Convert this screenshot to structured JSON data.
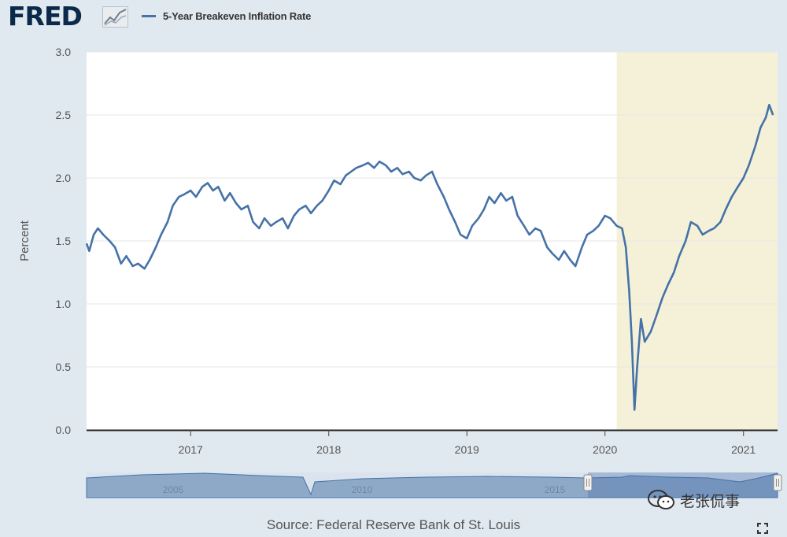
{
  "header": {
    "logo": "FRED",
    "legend_label": "5-Year Breakeven Inflation Rate",
    "legend_color": "#4572a7"
  },
  "footer": {
    "source": "Source: Federal Reserve Bank of St. Louis",
    "watermark": "老张侃事"
  },
  "chart_data": {
    "type": "line",
    "title": "",
    "ylabel": "Percent",
    "xlabel": "",
    "xlim": [
      "2016-04-01",
      "2021-04-01"
    ],
    "ylim": [
      0,
      3.0
    ],
    "yticks": [
      0.0,
      0.5,
      1.0,
      1.5,
      2.0,
      2.5,
      3.0
    ],
    "xticks": [
      "2017",
      "2018",
      "2019",
      "2020",
      "2021"
    ],
    "grid": true,
    "legend": "top-left",
    "recession_shading": {
      "start": "2020-02-01",
      "end": "2021-04-01",
      "color": "#f5f1d8"
    },
    "series": [
      {
        "name": "5-Year Breakeven Inflation Rate",
        "color": "#4572a7",
        "points": [
          [
            "2016-04-01",
            1.48
          ],
          [
            "2016-04-08",
            1.42
          ],
          [
            "2016-04-20",
            1.55
          ],
          [
            "2016-05-01",
            1.6
          ],
          [
            "2016-05-15",
            1.55
          ],
          [
            "2016-06-01",
            1.5
          ],
          [
            "2016-06-15",
            1.45
          ],
          [
            "2016-07-01",
            1.32
          ],
          [
            "2016-07-15",
            1.38
          ],
          [
            "2016-08-01",
            1.3
          ],
          [
            "2016-08-15",
            1.32
          ],
          [
            "2016-09-01",
            1.28
          ],
          [
            "2016-09-15",
            1.35
          ],
          [
            "2016-10-01",
            1.45
          ],
          [
            "2016-10-15",
            1.55
          ],
          [
            "2016-11-01",
            1.65
          ],
          [
            "2016-11-15",
            1.78
          ],
          [
            "2016-12-01",
            1.85
          ],
          [
            "2016-12-15",
            1.87
          ],
          [
            "2017-01-01",
            1.9
          ],
          [
            "2017-01-15",
            1.85
          ],
          [
            "2017-02-01",
            1.93
          ],
          [
            "2017-02-15",
            1.96
          ],
          [
            "2017-03-01",
            1.9
          ],
          [
            "2017-03-15",
            1.93
          ],
          [
            "2017-04-01",
            1.82
          ],
          [
            "2017-04-15",
            1.88
          ],
          [
            "2017-05-01",
            1.8
          ],
          [
            "2017-05-15",
            1.75
          ],
          [
            "2017-06-01",
            1.78
          ],
          [
            "2017-06-15",
            1.65
          ],
          [
            "2017-07-01",
            1.6
          ],
          [
            "2017-07-15",
            1.68
          ],
          [
            "2017-08-01",
            1.62
          ],
          [
            "2017-08-15",
            1.65
          ],
          [
            "2017-09-01",
            1.68
          ],
          [
            "2017-09-15",
            1.6
          ],
          [
            "2017-10-01",
            1.7
          ],
          [
            "2017-10-15",
            1.75
          ],
          [
            "2017-11-01",
            1.78
          ],
          [
            "2017-11-15",
            1.72
          ],
          [
            "2017-12-01",
            1.78
          ],
          [
            "2017-12-15",
            1.82
          ],
          [
            "2018-01-01",
            1.9
          ],
          [
            "2018-01-15",
            1.98
          ],
          [
            "2018-02-01",
            1.95
          ],
          [
            "2018-02-15",
            2.02
          ],
          [
            "2018-03-01",
            2.05
          ],
          [
            "2018-03-15",
            2.08
          ],
          [
            "2018-04-01",
            2.1
          ],
          [
            "2018-04-15",
            2.12
          ],
          [
            "2018-05-01",
            2.08
          ],
          [
            "2018-05-15",
            2.13
          ],
          [
            "2018-06-01",
            2.1
          ],
          [
            "2018-06-15",
            2.05
          ],
          [
            "2018-07-01",
            2.08
          ],
          [
            "2018-07-15",
            2.03
          ],
          [
            "2018-08-01",
            2.05
          ],
          [
            "2018-08-15",
            2.0
          ],
          [
            "2018-09-01",
            1.98
          ],
          [
            "2018-09-15",
            2.02
          ],
          [
            "2018-10-01",
            2.05
          ],
          [
            "2018-10-15",
            1.95
          ],
          [
            "2018-11-01",
            1.85
          ],
          [
            "2018-11-15",
            1.75
          ],
          [
            "2018-12-01",
            1.65
          ],
          [
            "2018-12-15",
            1.55
          ],
          [
            "2019-01-01",
            1.52
          ],
          [
            "2019-01-15",
            1.62
          ],
          [
            "2019-02-01",
            1.68
          ],
          [
            "2019-02-15",
            1.75
          ],
          [
            "2019-03-01",
            1.85
          ],
          [
            "2019-03-15",
            1.8
          ],
          [
            "2019-04-01",
            1.88
          ],
          [
            "2019-04-15",
            1.82
          ],
          [
            "2019-05-01",
            1.85
          ],
          [
            "2019-05-15",
            1.7
          ],
          [
            "2019-06-01",
            1.62
          ],
          [
            "2019-06-15",
            1.55
          ],
          [
            "2019-07-01",
            1.6
          ],
          [
            "2019-07-15",
            1.58
          ],
          [
            "2019-08-01",
            1.45
          ],
          [
            "2019-08-15",
            1.4
          ],
          [
            "2019-09-01",
            1.35
          ],
          [
            "2019-09-15",
            1.42
          ],
          [
            "2019-10-01",
            1.35
          ],
          [
            "2019-10-15",
            1.3
          ],
          [
            "2019-11-01",
            1.45
          ],
          [
            "2019-11-15",
            1.55
          ],
          [
            "2019-12-01",
            1.58
          ],
          [
            "2019-12-15",
            1.62
          ],
          [
            "2020-01-01",
            1.7
          ],
          [
            "2020-01-15",
            1.68
          ],
          [
            "2020-02-01",
            1.62
          ],
          [
            "2020-02-15",
            1.6
          ],
          [
            "2020-02-25",
            1.45
          ],
          [
            "2020-03-05",
            1.1
          ],
          [
            "2020-03-12",
            0.7
          ],
          [
            "2020-03-19",
            0.16
          ],
          [
            "2020-03-26",
            0.5
          ],
          [
            "2020-04-05",
            0.88
          ],
          [
            "2020-04-15",
            0.7
          ],
          [
            "2020-05-01",
            0.78
          ],
          [
            "2020-05-15",
            0.9
          ],
          [
            "2020-06-01",
            1.05
          ],
          [
            "2020-06-15",
            1.15
          ],
          [
            "2020-07-01",
            1.25
          ],
          [
            "2020-07-15",
            1.38
          ],
          [
            "2020-08-01",
            1.5
          ],
          [
            "2020-08-15",
            1.65
          ],
          [
            "2020-09-01",
            1.62
          ],
          [
            "2020-09-15",
            1.55
          ],
          [
            "2020-10-01",
            1.58
          ],
          [
            "2020-10-15",
            1.6
          ],
          [
            "2020-11-01",
            1.65
          ],
          [
            "2020-11-15",
            1.75
          ],
          [
            "2020-12-01",
            1.85
          ],
          [
            "2020-12-15",
            1.92
          ],
          [
            "2021-01-01",
            2.0
          ],
          [
            "2021-01-15",
            2.1
          ],
          [
            "2021-02-01",
            2.25
          ],
          [
            "2021-02-15",
            2.4
          ],
          [
            "2021-03-01",
            2.48
          ],
          [
            "2021-03-10",
            2.58
          ],
          [
            "2021-03-20",
            2.5
          ]
        ]
      }
    ]
  },
  "navigator": {
    "tick_labels": [
      "2005",
      "2010",
      "2015"
    ]
  }
}
